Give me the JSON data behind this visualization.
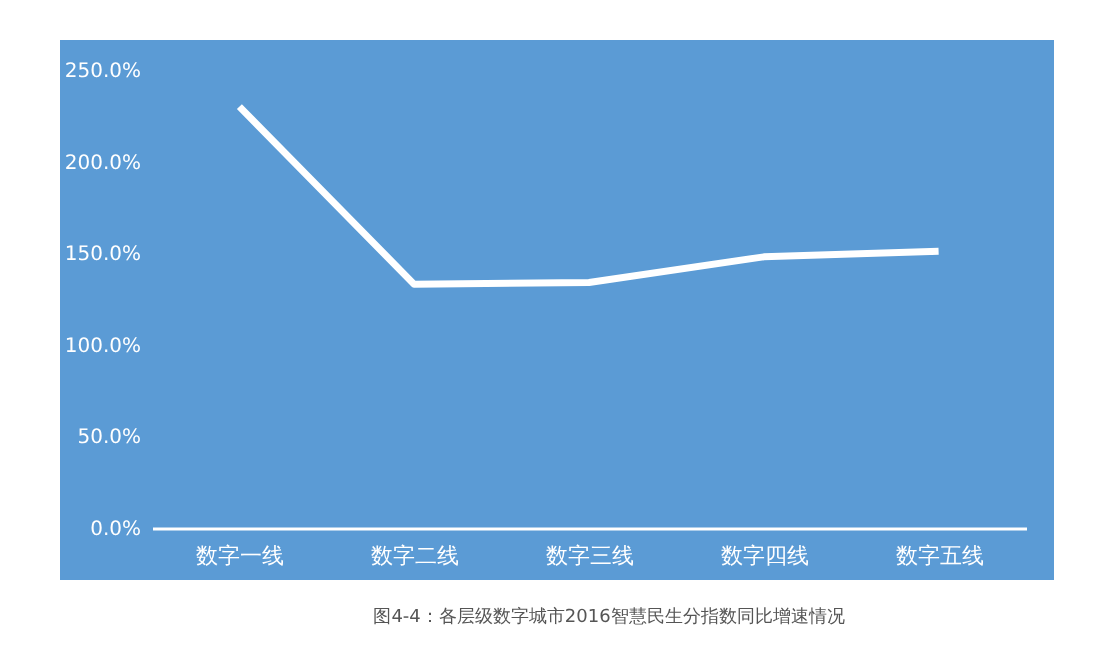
{
  "chart_data": {
    "type": "line",
    "categories": [
      "数字一线",
      "数字二线",
      "数字三线",
      "数字四线",
      "数字五线"
    ],
    "series": [
      {
        "color": "#ffffff",
        "values": [
          230,
          133,
          134,
          148,
          151
        ]
      }
    ],
    "ylim": [
      0,
      250
    ],
    "yticks": [
      {
        "value": 0,
        "label": "0.0%"
      },
      {
        "value": 50,
        "label": "50.0%"
      },
      {
        "value": 100,
        "label": "100.0%"
      },
      {
        "value": 150,
        "label": "150.0%"
      },
      {
        "value": 200,
        "label": "200.0%"
      },
      {
        "value": 250,
        "label": "250.0%"
      }
    ],
    "grid": false,
    "marker": "none",
    "line_style": "solid",
    "annotations": [
      "图4-4：各层级数字城市2016智慧民生分指数同比增速情况"
    ]
  }
}
